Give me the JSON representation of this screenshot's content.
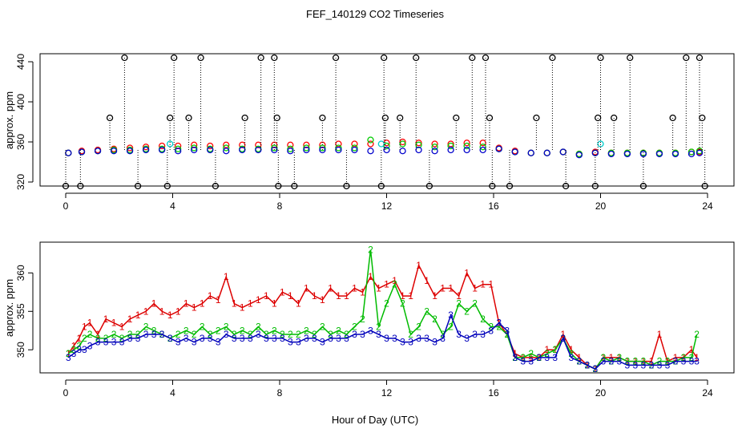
{
  "title": "FEF_140129  CO2 Timeseries",
  "xlabel": "Hour of Day (UTC)",
  "chart_data": [
    {
      "type": "scatter",
      "panel": "top",
      "ylabel": "approx. ppm",
      "xlim": [
        0,
        24
      ],
      "ylim": [
        316,
        448
      ],
      "x_ticks": [
        0,
        4,
        8,
        12,
        16,
        20,
        24
      ],
      "y_ticks": [
        320,
        360,
        400,
        440
      ],
      "grid": false,
      "series": [
        {
          "color": "#ff0000",
          "marker": "o",
          "x": [
            0.1,
            0.6,
            1.2,
            1.8,
            2.4,
            3.0,
            3.6,
            4.2,
            4.8,
            5.4,
            6.0,
            6.6,
            7.2,
            7.8,
            8.4,
            9.0,
            9.6,
            10.2,
            10.8,
            11.4,
            12.0,
            12.6,
            13.2,
            13.8,
            14.4,
            15.0,
            15.6,
            16.2,
            16.8,
            17.4,
            18.0,
            18.6,
            19.2,
            19.8,
            20.4,
            21.0,
            21.6,
            22.2,
            22.8,
            23.4,
            23.7
          ],
          "values": [
            349,
            351,
            352,
            353,
            354,
            355,
            356,
            356,
            357,
            356,
            357,
            357,
            357,
            357,
            357,
            357,
            357,
            358,
            358,
            358,
            359,
            360,
            359,
            358,
            358,
            359,
            359,
            354,
            351,
            349,
            349,
            350,
            348,
            350,
            349,
            349,
            349,
            349,
            349,
            350,
            350
          ]
        },
        {
          "color": "#00cc00",
          "marker": "o",
          "x": [
            0.1,
            0.6,
            1.2,
            1.8,
            2.4,
            3.0,
            3.6,
            4.2,
            4.8,
            5.4,
            6.0,
            6.6,
            7.2,
            7.8,
            8.4,
            9.0,
            9.6,
            10.2,
            10.8,
            11.4,
            12.0,
            12.6,
            13.2,
            13.8,
            14.4,
            15.0,
            15.6,
            16.2,
            16.8,
            17.4,
            18.0,
            18.6,
            19.2,
            19.8,
            20.4,
            21.0,
            21.6,
            22.2,
            22.8,
            23.4,
            23.7
          ],
          "values": [
            349,
            350,
            351,
            352,
            352,
            353,
            353,
            353,
            354,
            353,
            354,
            353,
            353,
            354,
            353,
            354,
            354,
            354,
            354,
            362,
            356,
            358,
            357,
            355,
            356,
            356,
            355,
            353,
            350,
            349,
            349,
            350,
            348,
            349,
            349,
            349,
            349,
            349,
            349,
            350,
            351
          ]
        },
        {
          "color": "#0000cc",
          "marker": "o",
          "x": [
            0.1,
            0.6,
            1.2,
            1.8,
            2.4,
            3.0,
            3.6,
            4.2,
            4.8,
            5.4,
            6.0,
            6.6,
            7.2,
            7.8,
            8.4,
            9.0,
            9.6,
            10.2,
            10.8,
            11.4,
            12.0,
            12.6,
            13.2,
            13.8,
            14.4,
            15.0,
            15.6,
            16.2,
            16.8,
            17.4,
            18.0,
            18.6,
            19.2,
            19.8,
            20.4,
            21.0,
            21.6,
            22.2,
            22.8,
            23.4,
            23.7
          ],
          "values": [
            349,
            350,
            351,
            351,
            351,
            352,
            352,
            351,
            352,
            352,
            351,
            352,
            352,
            352,
            351,
            352,
            352,
            352,
            352,
            351,
            352,
            351,
            352,
            351,
            352,
            352,
            352,
            353,
            350,
            349,
            349,
            350,
            347,
            349,
            348,
            348,
            348,
            348,
            348,
            348,
            349
          ]
        },
        {
          "color": "#00cccc",
          "marker": "o",
          "x": [
            3.9,
            11.8,
            20.0
          ],
          "values": [
            358,
            358,
            358
          ]
        },
        {
          "color": "#000000",
          "marker": "o",
          "name_hidden": true,
          "x": [
            0.0,
            0.55,
            1.65,
            2.2,
            2.7,
            3.8,
            3.9,
            4.05,
            4.6,
            5.05,
            5.6,
            6.7,
            7.3,
            7.8,
            7.9,
            7.95,
            8.55,
            9.6,
            10.1,
            10.5,
            11.8,
            11.9,
            11.95,
            12.5,
            13.1,
            13.6,
            14.6,
            15.2,
            15.7,
            15.85,
            15.95,
            16.6,
            17.6,
            18.2,
            18.7,
            19.8,
            19.9,
            20.0,
            20.5,
            21.1,
            21.6,
            22.7,
            23.2,
            23.7,
            23.8,
            23.9
          ],
          "values": [
            316,
            316,
            384,
            444,
            316,
            316,
            384,
            444,
            384,
            444,
            316,
            384,
            444,
            444,
            384,
            316,
            316,
            384,
            444,
            316,
            316,
            444,
            384,
            384,
            444,
            316,
            384,
            444,
            444,
            384,
            316,
            316,
            384,
            444,
            316,
            316,
            384,
            444,
            384,
            444,
            316,
            384,
            444,
            444,
            384,
            316
          ]
        }
      ]
    },
    {
      "type": "line",
      "panel": "bottom",
      "ylabel": "approx. ppm",
      "xlim": [
        0,
        24
      ],
      "ylim": [
        347,
        364
      ],
      "x_ticks": [
        0,
        4,
        8,
        12,
        16,
        20,
        24
      ],
      "y_ticks": [
        350,
        355,
        360
      ],
      "grid": false,
      "series": [
        {
          "color": "#dd0000",
          "marker": "1",
          "x": [
            0.1,
            0.3,
            0.5,
            0.7,
            0.9,
            1.2,
            1.5,
            1.8,
            2.1,
            2.4,
            2.7,
            3.0,
            3.3,
            3.6,
            3.9,
            4.2,
            4.5,
            4.8,
            5.1,
            5.4,
            5.7,
            6.0,
            6.3,
            6.6,
            6.9,
            7.2,
            7.5,
            7.8,
            8.1,
            8.4,
            8.7,
            9.0,
            9.3,
            9.6,
            9.9,
            10.2,
            10.5,
            10.8,
            11.1,
            11.4,
            11.7,
            12.0,
            12.3,
            12.6,
            12.9,
            13.2,
            13.5,
            13.8,
            14.1,
            14.4,
            14.7,
            15.0,
            15.3,
            15.6,
            15.9,
            16.2,
            16.5,
            16.8,
            17.1,
            17.4,
            17.7,
            18.0,
            18.3,
            18.6,
            18.9,
            19.2,
            19.5,
            19.8,
            20.1,
            20.4,
            20.7,
            21.0,
            21.3,
            21.6,
            21.9,
            22.2,
            22.5,
            22.8,
            23.1,
            23.4,
            23.6
          ],
          "values": [
            349.5,
            350.5,
            351.5,
            353,
            353.5,
            352,
            354,
            353.5,
            353,
            354,
            354.5,
            355,
            356,
            355,
            354.5,
            355,
            356,
            355.5,
            356,
            357,
            356.5,
            359.5,
            356,
            355.5,
            356,
            356.5,
            357,
            356,
            357.5,
            357,
            356,
            358,
            357,
            356.5,
            358,
            357,
            357,
            358,
            357.5,
            359.5,
            358,
            358.5,
            359,
            357,
            357,
            361,
            359,
            357,
            358,
            358,
            357,
            360,
            358,
            358.5,
            358.5,
            353.5,
            352,
            349.5,
            349,
            349,
            349,
            350,
            350,
            352,
            350,
            349,
            348,
            347.5,
            349,
            349,
            349,
            348.5,
            348.5,
            348.5,
            348.5,
            352,
            348.5,
            349,
            349,
            350,
            349
          ]
        },
        {
          "color": "#00bb00",
          "marker": "2",
          "x": [
            0.1,
            0.3,
            0.5,
            0.7,
            0.9,
            1.2,
            1.5,
            1.8,
            2.1,
            2.4,
            2.7,
            3.0,
            3.3,
            3.6,
            3.9,
            4.2,
            4.5,
            4.8,
            5.1,
            5.4,
            5.7,
            6.0,
            6.3,
            6.6,
            6.9,
            7.2,
            7.5,
            7.8,
            8.1,
            8.4,
            8.7,
            9.0,
            9.3,
            9.6,
            9.9,
            10.2,
            10.5,
            10.8,
            11.1,
            11.4,
            11.7,
            12.0,
            12.3,
            12.6,
            12.9,
            13.2,
            13.5,
            13.8,
            14.1,
            14.4,
            14.7,
            15.0,
            15.3,
            15.6,
            15.9,
            16.2,
            16.5,
            16.8,
            17.1,
            17.4,
            17.7,
            18.0,
            18.3,
            18.6,
            18.9,
            19.2,
            19.5,
            19.8,
            20.1,
            20.4,
            20.7,
            21.0,
            21.3,
            21.6,
            21.9,
            22.2,
            22.5,
            22.8,
            23.1,
            23.4,
            23.6
          ],
          "values": [
            349.5,
            350,
            350.5,
            351.5,
            352,
            351.5,
            351.5,
            352,
            351.5,
            352,
            352,
            353,
            352.5,
            352,
            351.5,
            352,
            352.5,
            352,
            353,
            352,
            352.5,
            353,
            352,
            352.5,
            352,
            353,
            352,
            352.5,
            352,
            352,
            352,
            352.5,
            352,
            353,
            352,
            352.5,
            352,
            353,
            354,
            363,
            353,
            356,
            358.5,
            356,
            352,
            353,
            355,
            354,
            352,
            353,
            356,
            355,
            356,
            354,
            353,
            353,
            352,
            349,
            349,
            349.5,
            349,
            349.5,
            350,
            351.5,
            349.5,
            348.5,
            348,
            347.5,
            349,
            348.5,
            349,
            348.5,
            348.5,
            348.5,
            348,
            348.5,
            348.5,
            348.5,
            349,
            349,
            352
          ]
        },
        {
          "color": "#0000bb",
          "marker": "3",
          "x": [
            0.1,
            0.3,
            0.5,
            0.7,
            0.9,
            1.2,
            1.5,
            1.8,
            2.1,
            2.4,
            2.7,
            3.0,
            3.3,
            3.6,
            3.9,
            4.2,
            4.5,
            4.8,
            5.1,
            5.4,
            5.7,
            6.0,
            6.3,
            6.6,
            6.9,
            7.2,
            7.5,
            7.8,
            8.1,
            8.4,
            8.7,
            9.0,
            9.3,
            9.6,
            9.9,
            10.2,
            10.5,
            10.8,
            11.1,
            11.4,
            11.7,
            12.0,
            12.3,
            12.6,
            12.9,
            13.2,
            13.5,
            13.8,
            14.1,
            14.4,
            14.7,
            15.0,
            15.3,
            15.6,
            15.9,
            16.2,
            16.5,
            16.8,
            17.1,
            17.4,
            17.7,
            18.0,
            18.3,
            18.6,
            18.9,
            19.2,
            19.5,
            19.8,
            20.1,
            20.4,
            20.7,
            21.0,
            21.3,
            21.6,
            21.9,
            22.2,
            22.5,
            22.8,
            23.1,
            23.4,
            23.6
          ],
          "values": [
            349,
            349.5,
            350,
            350,
            350.5,
            351,
            351,
            351,
            351,
            351.5,
            351.5,
            352,
            352,
            352,
            351.5,
            351,
            351.5,
            351,
            351.5,
            351.5,
            351,
            352,
            351.5,
            351.5,
            351.5,
            352,
            351.5,
            351.5,
            351.5,
            351,
            351,
            351.5,
            351.5,
            351,
            351.5,
            351.5,
            351.5,
            352,
            352,
            352.5,
            352,
            351.5,
            351.5,
            351,
            351,
            351.5,
            351.5,
            351,
            351.5,
            354.5,
            352,
            351.5,
            352,
            352,
            352.5,
            353.5,
            352.5,
            349,
            348.5,
            348.5,
            349,
            349,
            349,
            351.5,
            349,
            348.5,
            348,
            347.5,
            348.5,
            348.5,
            348.5,
            348,
            348,
            348,
            348,
            348,
            348,
            348.5,
            348.5,
            348.5,
            348.5
          ]
        }
      ]
    }
  ]
}
